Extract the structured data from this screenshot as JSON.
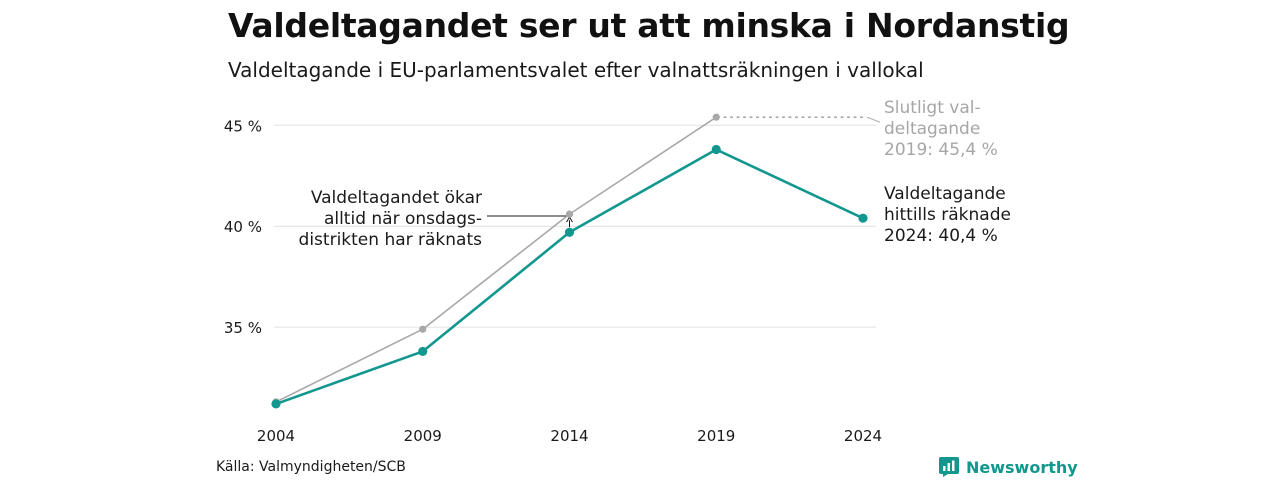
{
  "title": "Valdeltagandet ser ut att minska i Nordanstig",
  "subtitle": "Valdeltagande i EU-parlamentsvalet efter valnattsräkningen i vallokal",
  "source": "Källa: Valmyndigheten/SCB",
  "brand": "Newsworthy",
  "colors": {
    "teal": "#12978f",
    "gray": "#a8a8a8",
    "grid": "#e6e6e6",
    "text": "#1a1a1a",
    "annotation_gray": "#a6a6a6"
  },
  "chart_data": {
    "type": "line",
    "x": [
      "2004",
      "2009",
      "2014",
      "2019",
      "2024"
    ],
    "ylim": [
      30.8,
      46.5
    ],
    "yticks": [
      35,
      40,
      45
    ],
    "ytick_labels": [
      "35 %",
      "40 %",
      "45 %"
    ],
    "grid": true,
    "series": [
      {
        "key": "final",
        "values": [
          31.3,
          34.9,
          40.6,
          45.4,
          null
        ],
        "color": "#a8a8a8"
      },
      {
        "key": "election_night",
        "values": [
          31.2,
          33.8,
          39.7,
          43.8,
          40.4
        ],
        "color": "#12978f"
      }
    ],
    "annotations": {
      "final_label": [
        "Slutligt val-",
        "deltagande",
        "2019: 45,4 %"
      ],
      "current_label": [
        "Valdeltagande",
        "hittills räknade",
        "2024: 40,4 %"
      ],
      "increase_note": [
        "Valdeltagandet ökar",
        "alltid när onsdags-",
        "distrikten har räknats"
      ]
    }
  }
}
